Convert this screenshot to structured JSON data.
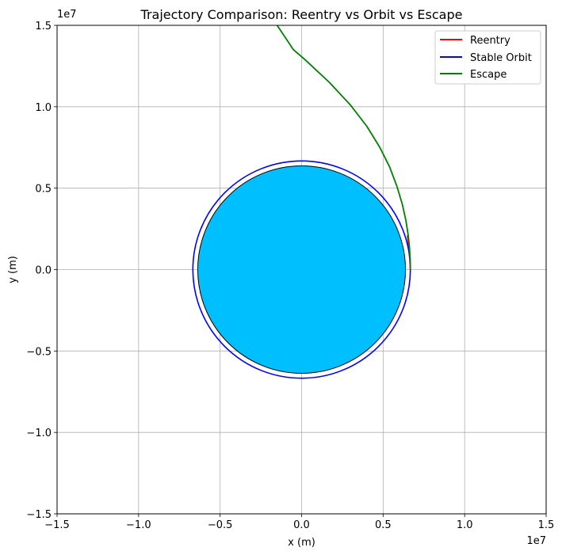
{
  "chart_data": {
    "type": "line",
    "title": "Trajectory Comparison: Reentry vs Orbit vs Escape",
    "xlabel": "x (m)",
    "ylabel": "y (m)",
    "xlim": [
      -15000000,
      15000000
    ],
    "ylim": [
      -15000000,
      15000000
    ],
    "x_offset_label": "1e7",
    "y_offset_label": "1e7",
    "x_ticks": [
      -15000000,
      -10000000,
      -5000000,
      0,
      5000000,
      10000000,
      15000000
    ],
    "x_tick_labels": [
      "−1.5",
      "−1.0",
      "−0.5",
      "0.0",
      "0.5",
      "1.0",
      "1.5"
    ],
    "y_ticks": [
      -15000000,
      -10000000,
      -5000000,
      0,
      5000000,
      10000000,
      15000000
    ],
    "y_tick_labels": [
      "−1.5",
      "−1.0",
      "−0.5",
      "0.0",
      "0.5",
      "1.0",
      "1.5"
    ],
    "grid": true,
    "legend_position": "top-right",
    "planet": {
      "radius": 6371000,
      "color": "#00bfff",
      "edge_color": "#000000"
    },
    "series": [
      {
        "name": "Reentry",
        "color": "#ff0000",
        "x": [
          6671000,
          6640000,
          6600000,
          6560000,
          6520000,
          6490000
        ],
        "y": [
          0,
          600000,
          1100000,
          1500000,
          1850000,
          2100000
        ]
      },
      {
        "name": "Stable Orbit",
        "color": "#0000ff",
        "orbit_radius": 6671000
      },
      {
        "name": "Escape",
        "color": "#008000",
        "x": [
          6671000,
          6660000,
          6620000,
          6540000,
          6400000,
          6180000,
          5850000,
          5400000,
          4800000,
          4000000,
          3000000,
          1700000,
          200000,
          -500000,
          -1500000
        ],
        "y": [
          0,
          600000,
          1300000,
          2100000,
          3000000,
          4000000,
          5100000,
          6300000,
          7500000,
          8800000,
          10100000,
          11500000,
          12900000,
          13500000,
          15000000
        ]
      }
    ]
  }
}
